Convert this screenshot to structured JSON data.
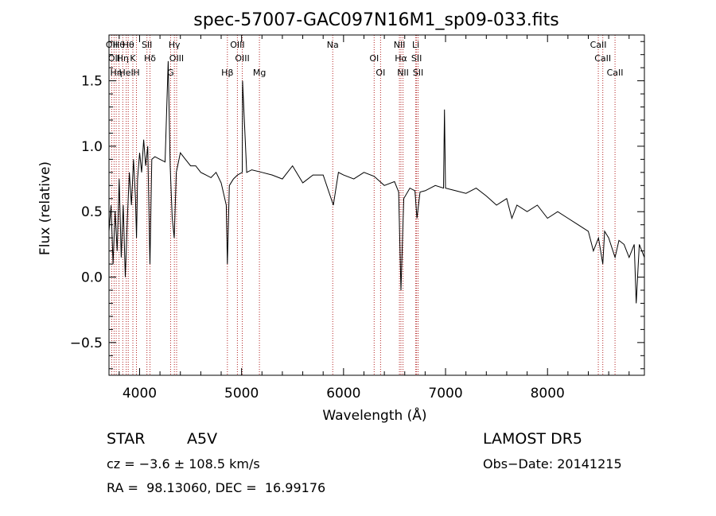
{
  "chart_data": {
    "type": "line",
    "title": "spec-57007-GAC097N16M1_sp09-033.fits",
    "xlabel": "Wavelength (Å)",
    "ylabel": "Flux (relative)",
    "xlim": [
      3700,
      8950
    ],
    "ylim": [
      -0.75,
      1.85
    ],
    "xticks": [
      4000,
      5000,
      6000,
      7000,
      8000
    ],
    "xtick_labels": [
      "4000",
      "5000",
      "6000",
      "7000",
      "8000"
    ],
    "yticks": [
      -0.5,
      0.0,
      0.5,
      1.0,
      1.5
    ],
    "ytick_labels": [
      "−0.5",
      "0.0",
      "0.5",
      "1.0",
      "1.5"
    ],
    "grid": false,
    "series": [
      {
        "color": "#000000",
        "x": [
          3700,
          3720,
          3740,
          3760,
          3780,
          3800,
          3820,
          3840,
          3860,
          3880,
          3900,
          3920,
          3940,
          3960,
          3970,
          3980,
          4000,
          4020,
          4040,
          4060,
          4080,
          4100,
          4102,
          4120,
          4150,
          4200,
          4250,
          4280,
          4300,
          4320,
          4340,
          4360,
          4400,
          4450,
          4500,
          4550,
          4600,
          4650,
          4700,
          4750,
          4800,
          4850,
          4861,
          4880,
          4920,
          4960,
          5007,
          5010,
          5050,
          5100,
          5200,
          5300,
          5400,
          5500,
          5600,
          5700,
          5800,
          5900,
          5950,
          6000,
          6100,
          6200,
          6300,
          6400,
          6500,
          6540,
          6563,
          6590,
          6650,
          6700,
          6720,
          6750,
          6800,
          6900,
          6980,
          6990,
          7000,
          7100,
          7200,
          7300,
          7400,
          7500,
          7600,
          7650,
          7700,
          7800,
          7900,
          8000,
          8100,
          8200,
          8300,
          8400,
          8450,
          8500,
          8542,
          8560,
          8600,
          8662,
          8700,
          8750,
          8800,
          8850,
          8870,
          8900,
          8950
        ],
        "y": [
          0.35,
          0.55,
          0.1,
          0.5,
          0.2,
          0.75,
          0.15,
          0.55,
          0.0,
          0.45,
          0.8,
          0.55,
          0.9,
          0.6,
          0.3,
          0.75,
          0.95,
          0.8,
          1.05,
          0.85,
          1.0,
          0.15,
          0.1,
          0.9,
          0.92,
          0.9,
          0.88,
          1.65,
          0.85,
          0.45,
          0.3,
          0.8,
          0.95,
          0.9,
          0.85,
          0.85,
          0.8,
          0.78,
          0.76,
          0.8,
          0.72,
          0.55,
          0.1,
          0.7,
          0.75,
          0.78,
          0.8,
          1.5,
          0.8,
          0.82,
          0.8,
          0.78,
          0.75,
          0.85,
          0.72,
          0.78,
          0.78,
          0.55,
          0.8,
          0.78,
          0.75,
          0.8,
          0.77,
          0.7,
          0.73,
          0.65,
          -0.1,
          0.6,
          0.68,
          0.66,
          0.45,
          0.65,
          0.66,
          0.7,
          0.68,
          1.28,
          0.68,
          0.66,
          0.64,
          0.68,
          0.62,
          0.55,
          0.6,
          0.45,
          0.55,
          0.5,
          0.55,
          0.45,
          0.5,
          0.45,
          0.4,
          0.35,
          0.2,
          0.3,
          0.1,
          0.35,
          0.3,
          0.15,
          0.28,
          0.25,
          0.15,
          0.25,
          -0.2,
          0.25,
          0.15
        ]
      }
    ],
    "lines": [
      {
        "wl": 3727,
        "labels": [
          "OII"
        ]
      },
      {
        "wl": 3750,
        "labels": [
          "OII"
        ]
      },
      {
        "wl": 3771,
        "labels": [
          "Hη"
        ]
      },
      {
        "wl": 3798,
        "labels": [
          "Hθ"
        ]
      },
      {
        "wl": 3835,
        "labels": [
          "Hη"
        ]
      },
      {
        "wl": 3869,
        "labels": [
          "HeI"
        ]
      },
      {
        "wl": 3889,
        "labels": [
          "Hθ"
        ]
      },
      {
        "wl": 3934,
        "labels": [
          "K"
        ]
      },
      {
        "wl": 3969,
        "labels": [
          "H"
        ]
      },
      {
        "wl": 4072,
        "labels": [
          "SII"
        ]
      },
      {
        "wl": 4102,
        "labels": [
          "Hδ"
        ]
      },
      {
        "wl": 4304,
        "labels": [
          "G"
        ]
      },
      {
        "wl": 4341,
        "labels": [
          "Hγ"
        ]
      },
      {
        "wl": 4363,
        "labels": [
          "OIII"
        ]
      },
      {
        "wl": 4861,
        "labels": [
          "Hβ"
        ]
      },
      {
        "wl": 4959,
        "labels": [
          "OIII"
        ]
      },
      {
        "wl": 5007,
        "labels": [
          "OIII"
        ]
      },
      {
        "wl": 5175,
        "labels": [
          "Mg"
        ]
      },
      {
        "wl": 5894,
        "labels": [
          "Na"
        ]
      },
      {
        "wl": 6300,
        "labels": [
          "OI"
        ]
      },
      {
        "wl": 6363,
        "labels": [
          "OI"
        ]
      },
      {
        "wl": 6548,
        "labels": [
          "NII"
        ]
      },
      {
        "wl": 6563,
        "labels": [
          "Hα"
        ]
      },
      {
        "wl": 6583,
        "labels": [
          "NII"
        ]
      },
      {
        "wl": 6708,
        "labels": [
          "Li"
        ]
      },
      {
        "wl": 6716,
        "labels": [
          "SII"
        ]
      },
      {
        "wl": 6731,
        "labels": [
          "SII"
        ]
      },
      {
        "wl": 8498,
        "labels": [
          "CaII"
        ]
      },
      {
        "wl": 8542,
        "labels": [
          "CaII"
        ]
      },
      {
        "wl": 8662,
        "labels": [
          "CaII"
        ]
      }
    ],
    "line_color": "#b22222"
  },
  "info": {
    "class": "STAR",
    "subclass": "A5V",
    "survey": "LAMOST DR5",
    "cz": "cz = −3.6 ± 108.5 km/s",
    "obs_date": "Obs−Date: 20141215",
    "coords": "RA =  98.13060, DEC =  16.99176"
  }
}
